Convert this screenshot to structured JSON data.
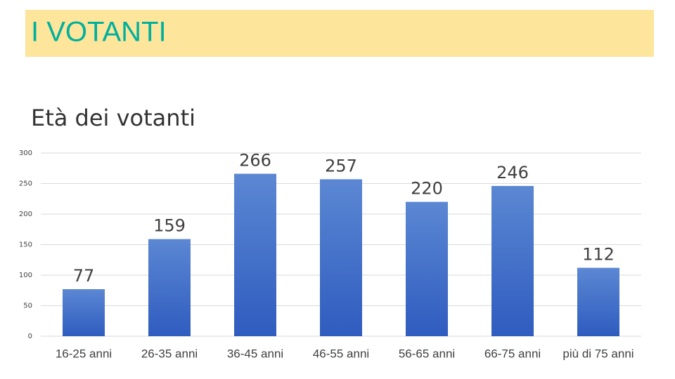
{
  "header": {
    "title": "I VOTANTI"
  },
  "chart_data": {
    "type": "bar",
    "title": "Età dei votanti",
    "categories": [
      "16-25 anni",
      "26-35 anni",
      "36-45 anni",
      "46-55 anni",
      "56-65 anni",
      "66-75 anni",
      "più di 75 anni"
    ],
    "values": [
      77,
      159,
      266,
      257,
      220,
      246,
      112
    ],
    "color": "#4472c4",
    "ylim": [
      0,
      300
    ],
    "yticks": [
      0,
      50,
      100,
      150,
      200,
      250,
      300
    ],
    "grid": true
  }
}
